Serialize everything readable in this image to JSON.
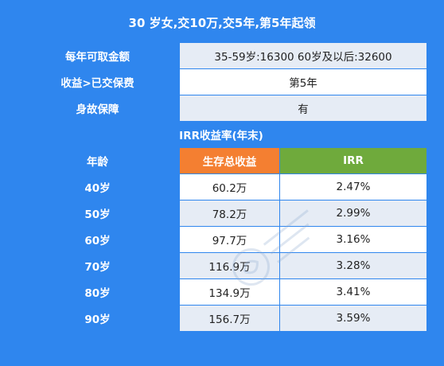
{
  "title": "30 岁女,交10万,交5年,第5年起领",
  "info_rows": [
    {
      "label": "每年可取金额",
      "value": "35-59岁:16300 60岁及以后:32600"
    },
    {
      "label": "收益>已交保费",
      "value": "第5年"
    },
    {
      "label": "身故保障",
      "value": "有"
    }
  ],
  "irr_section": {
    "heading": "IRR收益率(年末)"
  },
  "columns": {
    "age": "年龄",
    "survival": "生存总收益",
    "irr": "IRR"
  },
  "rows": [
    {
      "age": "40岁",
      "survival": "60.2万",
      "irr": "2.47%"
    },
    {
      "age": "50岁",
      "survival": "78.2万",
      "irr": "2.99%"
    },
    {
      "age": "60岁",
      "survival": "97.7万",
      "irr": "3.16%"
    },
    {
      "age": "70岁",
      "survival": "116.9万",
      "irr": "3.28%"
    },
    {
      "age": "80岁",
      "survival": "134.9万",
      "irr": "3.41%"
    },
    {
      "age": "90岁",
      "survival": "156.7万",
      "irr": "3.59%"
    }
  ],
  "colors": {
    "accent": "#2f86ee",
    "orange": "#f47f31",
    "green": "#6faa3c",
    "stripe": "#e6ecf5"
  }
}
